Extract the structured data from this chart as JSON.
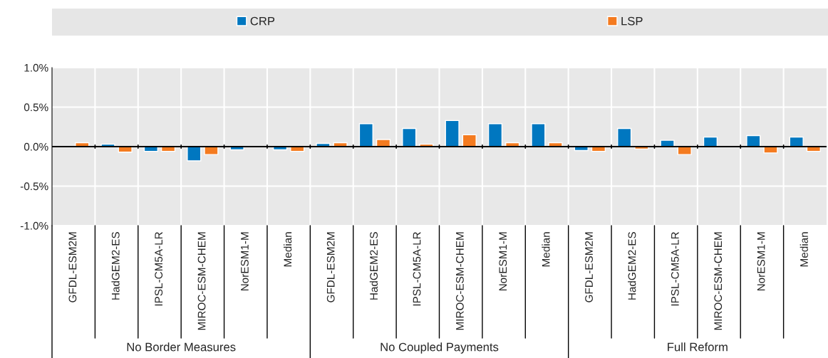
{
  "chart_data": {
    "type": "bar",
    "categories": [
      "GFDL-ESM2M",
      "HadGEM2-ES",
      "IPSL-CM5A-LR",
      "MIROC-ESM-CHEM",
      "NorESM1-M",
      "Median",
      "GFDL-ESM2M",
      "HadGEM2-ES",
      "IPSL-CM5A-LR",
      "MIROC-ESM-CHEM",
      "NorESM1-M",
      "Median",
      "GFDL-ESM2M",
      "HadGEM2-ES",
      "IPSL-CM5A-LR",
      "MIROC-ESM-CHEM",
      "NorESM1-M",
      "Median"
    ],
    "series": [
      {
        "name": "CRP",
        "color": "#0077c0",
        "values": [
          null,
          0.03,
          -0.06,
          -0.18,
          -0.04,
          -0.04,
          0.04,
          0.29,
          0.23,
          0.33,
          0.29,
          0.29,
          -0.05,
          0.23,
          0.08,
          0.12,
          0.14,
          0.12
        ]
      },
      {
        "name": "LSP",
        "color": "#f47b20",
        "values": [
          0.05,
          -0.07,
          -0.06,
          -0.1,
          null,
          -0.06,
          0.05,
          0.09,
          0.03,
          0.15,
          0.05,
          0.05,
          -0.06,
          -0.03,
          -0.1,
          null,
          -0.08,
          -0.06
        ]
      }
    ],
    "ylim": [
      -1.0,
      1.0
    ],
    "yticks": [
      {
        "value": -1.0,
        "label": "-1.0%"
      },
      {
        "value": -0.5,
        "label": "-0.5%"
      },
      {
        "value": 0,
        "label": "0.0%"
      },
      {
        "value": 0.5,
        "label": "0.5%"
      },
      {
        "value": 1.0,
        "label": "1.0%"
      }
    ],
    "annotations": [
      "No Border Measures",
      "No Coupled Payments",
      "Full Reform"
    ],
    "grid": true,
    "legend": "top"
  }
}
